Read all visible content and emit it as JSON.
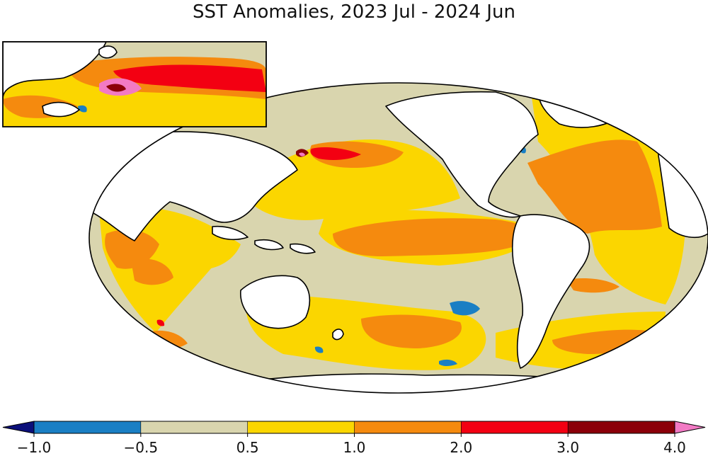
{
  "title": "SST Anomalies, 2023 Jul - 2024 Jun",
  "colorbar": {
    "extend": "both",
    "under_color": "#0b0f7a",
    "over_color": "#f27ac4",
    "bins": [
      {
        "from": -1.0,
        "to": -0.5,
        "color": "#1a7fc4"
      },
      {
        "from": -0.5,
        "to": 0.5,
        "color": "#d9d5ae"
      },
      {
        "from": 0.5,
        "to": 1.0,
        "color": "#fbd600"
      },
      {
        "from": 1.0,
        "to": 2.0,
        "color": "#f58a0e"
      },
      {
        "from": 2.0,
        "to": 3.0,
        "color": "#f30012"
      },
      {
        "from": 3.0,
        "to": 4.0,
        "color": "#8b0009"
      }
    ],
    "tick_labels": [
      "−1.0",
      "−0.5",
      "0.5",
      "1.0",
      "2.0",
      "3.0",
      "4.0"
    ]
  },
  "map": {
    "projection": "Mollweide (Pacific-centered)",
    "inset": "Northwest Pacific / Japan zoom"
  }
}
